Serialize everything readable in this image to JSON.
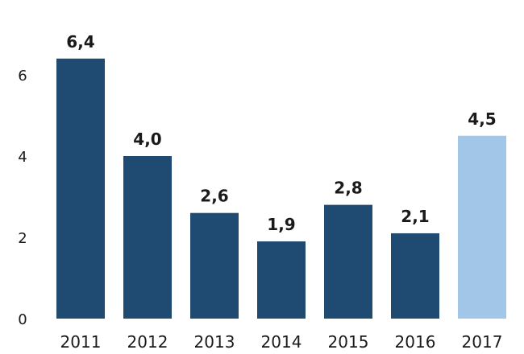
{
  "chart_data": {
    "type": "bar",
    "title": "",
    "xlabel": "",
    "ylabel": "",
    "categories": [
      "2011",
      "2012",
      "2013",
      "2014",
      "2015",
      "2016",
      "2017"
    ],
    "values": [
      6.4,
      4.0,
      2.6,
      1.9,
      2.8,
      2.1,
      4.5
    ],
    "data_labels": [
      "6,4",
      "4,0",
      "2,6",
      "1,9",
      "2,8",
      "2,1",
      "4,5"
    ],
    "yticks": [
      0,
      2,
      4,
      6
    ],
    "ytick_labels": [
      "0",
      "2",
      "4",
      "6"
    ],
    "ylim": [
      0,
      7.6
    ],
    "grid": false,
    "legend": "none",
    "colors": {
      "actual": "#1f4a72",
      "forecast": "#a2c6e8"
    },
    "highlight_index": 6
  }
}
